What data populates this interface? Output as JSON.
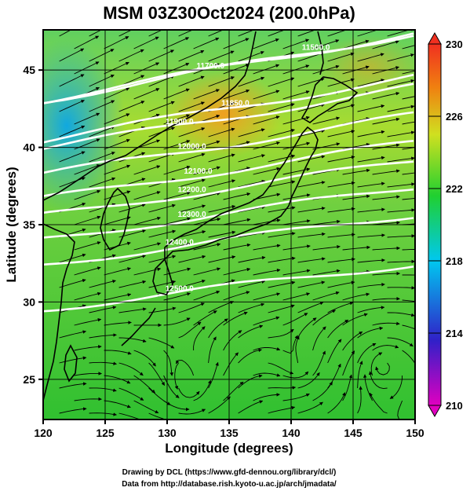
{
  "chart_data": {
    "type": "heatmap",
    "title": "MSM 03Z30Oct2024 (200.0hPa)",
    "xlabel": "Longitude (degrees)",
    "ylabel": "Latitude  (degrees)",
    "xlim": [
      120,
      150
    ],
    "ylim": [
      22.4,
      47.6
    ],
    "x_ticks": [
      120,
      125,
      130,
      135,
      140,
      145,
      150
    ],
    "y_ticks": [
      25,
      30,
      35,
      40,
      45
    ],
    "colorbar": {
      "min": 210,
      "max": 230,
      "ticks": [
        210,
        214,
        218,
        222,
        226,
        230
      ],
      "colors": [
        "#e000c0",
        "#3020c8",
        "#00c8f0",
        "#20d030",
        "#d0e020",
        "#f08010",
        "#f03020"
      ]
    },
    "contours": [
      {
        "label": "11500.0",
        "lon": 142.0,
        "lat": 46.2
      },
      {
        "label": "11700.0",
        "lon": 133.5,
        "lat": 45.0
      },
      {
        "label": "11850.0",
        "lon": 135.5,
        "lat": 42.6
      },
      {
        "label": "11900.0",
        "lon": 131.0,
        "lat": 41.4
      },
      {
        "label": "12000.0",
        "lon": 132.0,
        "lat": 39.8
      },
      {
        "label": "12100.0",
        "lon": 132.5,
        "lat": 38.2
      },
      {
        "label": "12200.0",
        "lon": 132.0,
        "lat": 37.0
      },
      {
        "label": "12300.0",
        "lon": 132.0,
        "lat": 35.4
      },
      {
        "label": "12400.0",
        "lon": 131.0,
        "lat": 33.6
      },
      {
        "label": "12500.0",
        "lon": 131.0,
        "lat": 30.6
      }
    ]
  },
  "credits": {
    "line1": "Drawing by DCL (https://www.gfd-dennou.org/library/dcl/)",
    "line2": "Data from http://database.rish.kyoto-u.ac.jp/arch/jmadata/"
  }
}
